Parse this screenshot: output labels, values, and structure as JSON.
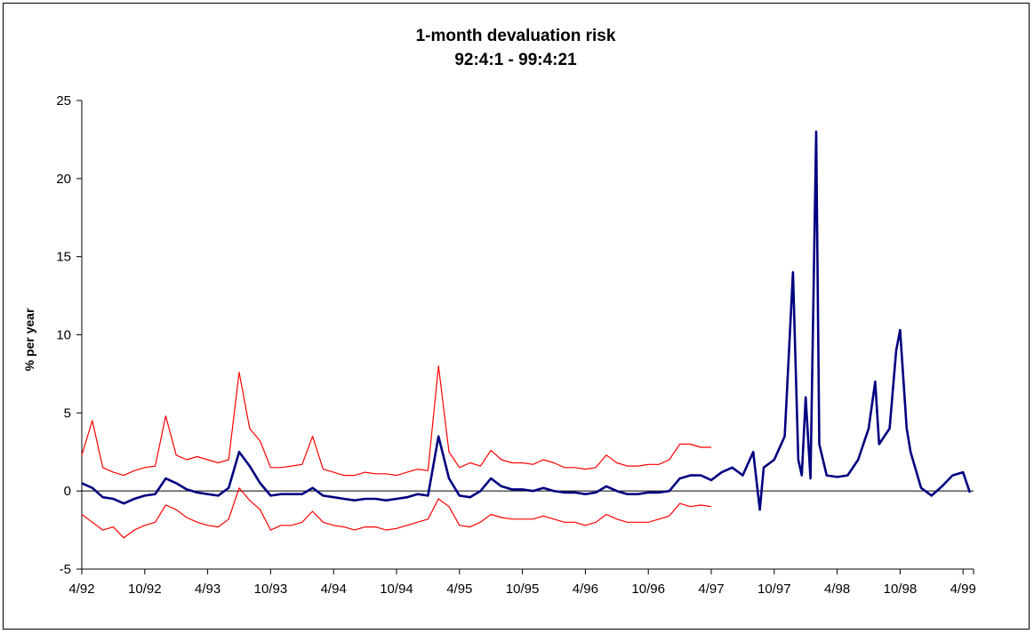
{
  "chart_data": {
    "type": "line",
    "title": "1-month devaluation risk",
    "subtitle": "92:4:1 - 99:4:21",
    "xlabel": "",
    "ylabel": "% per year",
    "ylim": [
      -5,
      25
    ],
    "yticks": [
      -5,
      0,
      5,
      10,
      15,
      20,
      25
    ],
    "xlim_months": [
      "1992-04",
      "1999-05"
    ],
    "x_tick_labels": [
      "4/92",
      "10/92",
      "4/93",
      "10/93",
      "4/94",
      "10/94",
      "4/95",
      "10/95",
      "4/96",
      "10/96",
      "4/97",
      "10/97",
      "4/98",
      "10/98",
      "4/99"
    ],
    "grid": false,
    "legend": "none",
    "reference_line_y": 0,
    "colors": {
      "mean": "#000080",
      "band": "#ff0000",
      "axis": "#000000"
    },
    "series": [
      {
        "role": "mean",
        "x": [
          "1992-04-01",
          "1992-05-01",
          "1992-06-01",
          "1992-07-01",
          "1992-08-01",
          "1992-09-01",
          "1992-10-01",
          "1992-11-01",
          "1992-12-01",
          "1993-01-01",
          "1993-02-01",
          "1993-03-01",
          "1993-04-01",
          "1993-05-01",
          "1993-06-01",
          "1993-07-01",
          "1993-08-01",
          "1993-09-01",
          "1993-10-01",
          "1993-11-01",
          "1993-12-01",
          "1994-01-01",
          "1994-02-01",
          "1994-03-01",
          "1994-04-01",
          "1994-05-01",
          "1994-06-01",
          "1994-07-01",
          "1994-08-01",
          "1994-09-01",
          "1994-10-01",
          "1994-11-01",
          "1994-12-01",
          "1995-01-01",
          "1995-02-01",
          "1995-03-01",
          "1995-04-01",
          "1995-05-01",
          "1995-06-01",
          "1995-07-01",
          "1995-08-01",
          "1995-09-01",
          "1995-10-01",
          "1995-11-01",
          "1995-12-01",
          "1996-01-01",
          "1996-02-01",
          "1996-03-01",
          "1996-04-01",
          "1996-05-01",
          "1996-06-01",
          "1996-07-01",
          "1996-08-01",
          "1996-09-01",
          "1996-10-01",
          "1996-11-01",
          "1996-12-01",
          "1997-01-01",
          "1997-02-01",
          "1997-03-01",
          "1997-04-01",
          "1997-05-01",
          "1997-06-01",
          "1997-07-01",
          "1997-08-01",
          "1997-08-20",
          "1997-09-01",
          "1997-10-01",
          "1997-11-01",
          "1997-11-25",
          "1997-12-10",
          "1997-12-20",
          "1998-01-01",
          "1998-01-15",
          "1998-02-01",
          "1998-02-10",
          "1998-03-01",
          "1998-04-01",
          "1998-05-01",
          "1998-06-01",
          "1998-07-01",
          "1998-07-20",
          "1998-08-01",
          "1998-09-01",
          "1998-09-20",
          "1998-10-01",
          "1998-10-20",
          "1998-11-01",
          "1998-12-01",
          "1999-01-01",
          "1999-02-01",
          "1999-03-01",
          "1999-04-01",
          "1999-04-21"
        ],
        "y": [
          0.5,
          0.2,
          -0.4,
          -0.5,
          -0.8,
          -0.5,
          -0.3,
          -0.2,
          0.8,
          0.5,
          0.1,
          -0.1,
          -0.2,
          -0.3,
          0.2,
          2.5,
          1.6,
          0.5,
          -0.3,
          -0.2,
          -0.2,
          -0.2,
          0.2,
          -0.3,
          -0.4,
          -0.5,
          -0.6,
          -0.5,
          -0.5,
          -0.6,
          -0.5,
          -0.4,
          -0.2,
          -0.3,
          3.5,
          0.8,
          -0.3,
          -0.4,
          0.0,
          0.8,
          0.3,
          0.1,
          0.1,
          0.0,
          0.2,
          0.0,
          -0.1,
          -0.1,
          -0.2,
          -0.1,
          0.3,
          0.0,
          -0.2,
          -0.2,
          -0.1,
          -0.1,
          0.0,
          0.8,
          1.0,
          1.0,
          0.7,
          1.2,
          1.5,
          1.0,
          2.5,
          -1.2,
          1.5,
          2.0,
          3.5,
          14.0,
          2.0,
          1.0,
          6.0,
          0.8,
          23.0,
          3.0,
          1.0,
          0.9,
          1.0,
          2.0,
          4.0,
          7.0,
          3.0,
          4.0,
          9.0,
          10.3,
          4.0,
          2.5,
          0.2,
          -0.3,
          0.3,
          1.0,
          1.2,
          -0.1
        ]
      },
      {
        "role": "upper band",
        "x": [
          "1992-04-01",
          "1992-05-01",
          "1992-06-01",
          "1992-07-01",
          "1992-08-01",
          "1992-09-01",
          "1992-10-01",
          "1992-11-01",
          "1992-12-01",
          "1993-01-01",
          "1993-02-01",
          "1993-03-01",
          "1993-04-01",
          "1993-05-01",
          "1993-06-01",
          "1993-07-01",
          "1993-08-01",
          "1993-09-01",
          "1993-10-01",
          "1993-11-01",
          "1993-12-01",
          "1994-01-01",
          "1994-02-01",
          "1994-03-01",
          "1994-04-01",
          "1994-05-01",
          "1994-06-01",
          "1994-07-01",
          "1994-08-01",
          "1994-09-01",
          "1994-10-01",
          "1994-11-01",
          "1994-12-01",
          "1995-01-01",
          "1995-02-01",
          "1995-03-01",
          "1995-04-01",
          "1995-05-01",
          "1995-06-01",
          "1995-07-01",
          "1995-08-01",
          "1995-09-01",
          "1995-10-01",
          "1995-11-01",
          "1995-12-01",
          "1996-01-01",
          "1996-02-01",
          "1996-03-01",
          "1996-04-01",
          "1996-05-01",
          "1996-06-01",
          "1996-07-01",
          "1996-08-01",
          "1996-09-01",
          "1996-10-01",
          "1996-11-01",
          "1996-12-01",
          "1997-01-01",
          "1997-02-01",
          "1997-03-01",
          "1997-04-01"
        ],
        "y": [
          2.3,
          4.5,
          1.5,
          1.2,
          1.0,
          1.3,
          1.5,
          1.6,
          4.8,
          2.3,
          2.0,
          2.2,
          2.0,
          1.8,
          2.0,
          7.6,
          4.0,
          3.2,
          1.5,
          1.5,
          1.6,
          1.7,
          3.5,
          1.4,
          1.2,
          1.0,
          1.0,
          1.2,
          1.1,
          1.1,
          1.0,
          1.2,
          1.4,
          1.3,
          8.0,
          2.5,
          1.5,
          1.8,
          1.6,
          2.6,
          2.0,
          1.8,
          1.8,
          1.7,
          2.0,
          1.8,
          1.5,
          1.5,
          1.4,
          1.5,
          2.3,
          1.8,
          1.6,
          1.6,
          1.7,
          1.7,
          2.0,
          3.0,
          3.0,
          2.8,
          2.8
        ]
      },
      {
        "role": "lower band",
        "x": [
          "1992-04-01",
          "1992-05-01",
          "1992-06-01",
          "1992-07-01",
          "1992-08-01",
          "1992-09-01",
          "1992-10-01",
          "1992-11-01",
          "1992-12-01",
          "1993-01-01",
          "1993-02-01",
          "1993-03-01",
          "1993-04-01",
          "1993-05-01",
          "1993-06-01",
          "1993-07-01",
          "1993-08-01",
          "1993-09-01",
          "1993-10-01",
          "1993-11-01",
          "1993-12-01",
          "1994-01-01",
          "1994-02-01",
          "1994-03-01",
          "1994-04-01",
          "1994-05-01",
          "1994-06-01",
          "1994-07-01",
          "1994-08-01",
          "1994-09-01",
          "1994-10-01",
          "1994-11-01",
          "1994-12-01",
          "1995-01-01",
          "1995-02-01",
          "1995-03-01",
          "1995-04-01",
          "1995-05-01",
          "1995-06-01",
          "1995-07-01",
          "1995-08-01",
          "1995-09-01",
          "1995-10-01",
          "1995-11-01",
          "1995-12-01",
          "1996-01-01",
          "1996-02-01",
          "1996-03-01",
          "1996-04-01",
          "1996-05-01",
          "1996-06-01",
          "1996-07-01",
          "1996-08-01",
          "1996-09-01",
          "1996-10-01",
          "1996-11-01",
          "1996-12-01",
          "1997-01-01",
          "1997-02-01",
          "1997-03-01",
          "1997-04-01"
        ],
        "y": [
          -1.5,
          -2.0,
          -2.5,
          -2.3,
          -3.0,
          -2.5,
          -2.2,
          -2.0,
          -0.9,
          -1.2,
          -1.7,
          -2.0,
          -2.2,
          -2.3,
          -1.8,
          0.2,
          -0.6,
          -1.2,
          -2.5,
          -2.2,
          -2.2,
          -2.0,
          -1.3,
          -2.0,
          -2.2,
          -2.3,
          -2.5,
          -2.3,
          -2.3,
          -2.5,
          -2.4,
          -2.2,
          -2.0,
          -1.8,
          -0.5,
          -1.0,
          -2.2,
          -2.3,
          -2.0,
          -1.5,
          -1.7,
          -1.8,
          -1.8,
          -1.8,
          -1.6,
          -1.8,
          -2.0,
          -2.0,
          -2.2,
          -2.0,
          -1.5,
          -1.8,
          -2.0,
          -2.0,
          -2.0,
          -1.8,
          -1.6,
          -0.8,
          -1.0,
          -0.9,
          -1.0
        ]
      }
    ]
  }
}
